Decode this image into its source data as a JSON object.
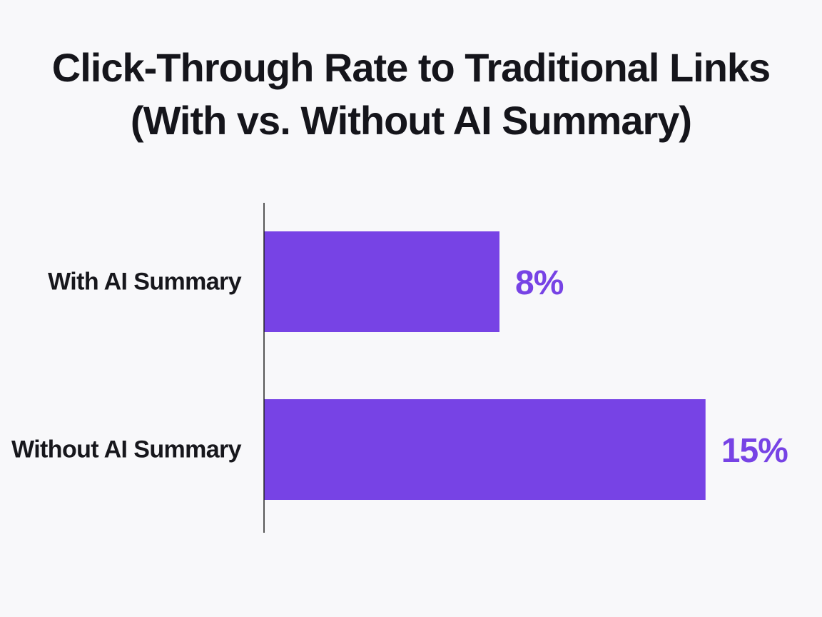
{
  "chart_data": {
    "type": "bar",
    "orientation": "horizontal",
    "title": [
      "Click-Through Rate to Traditional Links",
      "(With vs. Without AI Summary)"
    ],
    "categories": [
      "With AI Summary",
      "Without AI Summary"
    ],
    "values": [
      8,
      15
    ],
    "value_labels": [
      "8%",
      "15%"
    ],
    "unit": "%",
    "xlim": [
      0,
      16
    ],
    "xlabel": "",
    "ylabel": "",
    "grid": false,
    "legend": "none",
    "colors": {
      "bar": "#7743e5",
      "value_label": "#7743e5",
      "axis": "#222222",
      "text": "#15151b"
    }
  }
}
